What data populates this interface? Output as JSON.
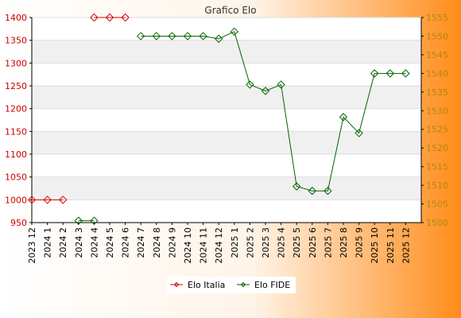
{
  "chart_data": {
    "type": "line",
    "title": "Grafico Elo",
    "categories": [
      "2023 12",
      "2024 1",
      "2024 2",
      "2024 3",
      "2024 4",
      "2024 5",
      "2024 6",
      "2024 7",
      "2024 8",
      "2024 9",
      "2024 10",
      "2024 11",
      "2024 12",
      "2025 1",
      "2025 2",
      "2025 3",
      "2025 4",
      "2025 5",
      "2025 6",
      "2025 7",
      "2025 8",
      "2025 9",
      "2025 10",
      "2025 11",
      "2025 12"
    ],
    "y_left": {
      "ylim": [
        950,
        1400
      ],
      "ticks": [
        950,
        1000,
        1050,
        1100,
        1150,
        1200,
        1250,
        1300,
        1350,
        1400
      ]
    },
    "y_right": {
      "ylim": [
        1500,
        1555
      ],
      "ticks": [
        1500,
        1505,
        1510,
        1515,
        1520,
        1525,
        1530,
        1535,
        1540,
        1545,
        1550,
        1555
      ]
    },
    "series": [
      {
        "name": "Elo Italia",
        "axis": "left",
        "color": "#dd0000",
        "values": [
          1000,
          1000,
          1000,
          null,
          1400,
          1400,
          1400,
          null,
          null,
          null,
          null,
          null,
          null,
          null,
          null,
          null,
          null,
          null,
          null,
          null,
          null,
          null,
          null,
          null,
          null
        ]
      },
      {
        "name": "Elo FIDE",
        "axis": "right",
        "color": "#006600",
        "values": [
          null,
          null,
          null,
          1500.5,
          1500.5,
          null,
          null,
          1550,
          1550,
          1550,
          1550,
          1550,
          1549.3,
          1551.2,
          1537,
          1535.3,
          1537,
          1509.7,
          1508.5,
          1508.5,
          1528.3,
          1524,
          1540,
          1540,
          1540
        ]
      }
    ],
    "legend_placement": "bottom-center",
    "grid": true
  },
  "colors": {
    "left_axis_text": "#cc0000",
    "right_axis_text": "#b8860b",
    "band": "#f0f0f0",
    "gradient_start": "#ffffff",
    "gradient_end": "#ff8c1a"
  }
}
